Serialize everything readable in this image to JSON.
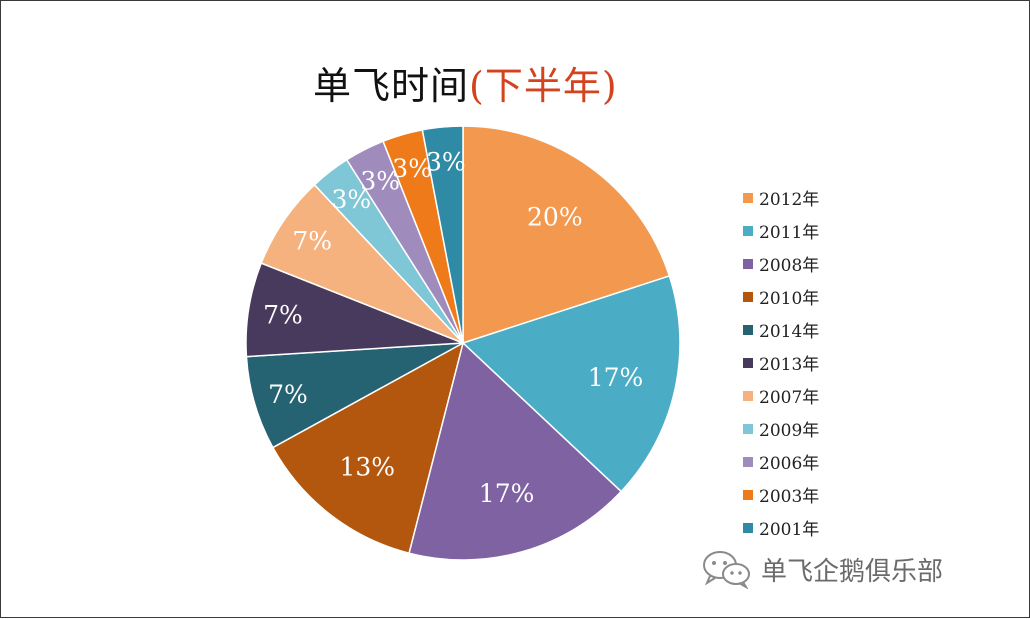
{
  "chart_data": {
    "type": "pie",
    "title": "单飞时间",
    "subtitle": "(下半年)",
    "categories": [
      "2012年",
      "2011年",
      "2008年",
      "2010年",
      "2014年",
      "2013年",
      "2007年",
      "2009年",
      "2006年",
      "2003年",
      "2001年"
    ],
    "values": [
      20,
      17,
      17,
      13,
      7,
      7,
      7,
      3,
      3,
      3,
      3
    ],
    "labels": [
      "20%",
      "17%",
      "17%",
      "13%",
      "7%",
      "7%",
      "7%",
      "3%",
      "3%",
      "3%",
      "3%"
    ],
    "colors": [
      "#f2994f",
      "#4bacc6",
      "#7e62a2",
      "#b3560e",
      "#256272",
      "#483a5c",
      "#f5b27e",
      "#7fc6d7",
      "#9f8cbd",
      "#ef7a19",
      "#2f8aa5"
    ],
    "legend_position": "right"
  },
  "watermark": {
    "text": "单飞企鹅俱乐部",
    "icon": "wechat-icon"
  }
}
